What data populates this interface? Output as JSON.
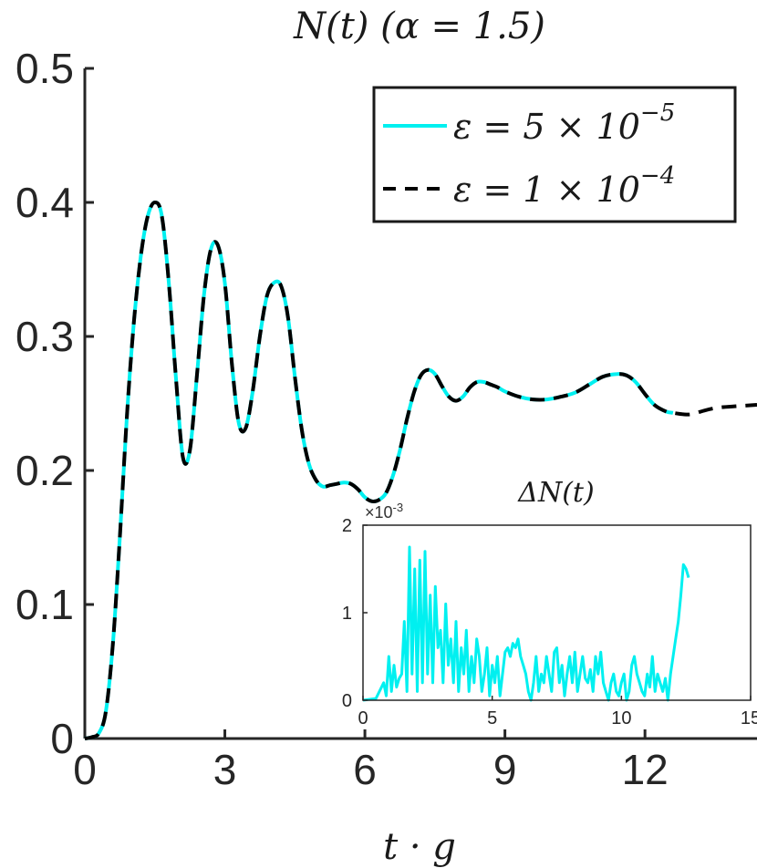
{
  "chart_data": [
    {
      "type": "line",
      "title": "N(t) (α = 1.5)",
      "xlabel": "t · g",
      "ylabel": "",
      "xlim": [
        0,
        14.4
      ],
      "ylim": [
        0,
        0.5
      ],
      "xticks": [
        0,
        3,
        6,
        9,
        12
      ],
      "xtick_labels": [
        "0",
        "3",
        "6",
        "9",
        "12"
      ],
      "yticks": [
        0,
        0.1,
        0.2,
        0.3,
        0.4,
        0.5
      ],
      "ytick_labels": [
        "0",
        "0.1",
        "0.2",
        "0.3",
        "0.4",
        "0.5"
      ],
      "grid": false,
      "legend_position": "top-right",
      "series": [
        {
          "name": "ε = 5 × 10⁻⁵",
          "legend_main": "ε = 5 × 10",
          "legend_exp": "−5",
          "color": "#00f0f0",
          "dash": "solid",
          "x": [
            0,
            0.15,
            0.3,
            0.45,
            0.6,
            0.75,
            0.9,
            1.05,
            1.2,
            1.35,
            1.5,
            1.65,
            1.8,
            1.95,
            2.1,
            2.25,
            2.4,
            2.55,
            2.7,
            2.85,
            3.0,
            3.15,
            3.3,
            3.45,
            3.6,
            3.75,
            3.9,
            4.05,
            4.2,
            4.35,
            4.5,
            4.65,
            4.8,
            4.95,
            5.1,
            5.25,
            5.4,
            5.55,
            5.7,
            5.85,
            6.0,
            6.15,
            6.3,
            6.45,
            6.6,
            6.75,
            6.9,
            7.05,
            7.2,
            7.35,
            7.5,
            7.65,
            7.8,
            7.95,
            8.1,
            8.25,
            8.4,
            8.55,
            8.7,
            8.85,
            9.0,
            9.3,
            9.6,
            9.9,
            10.2,
            10.5,
            10.8,
            11.1,
            11.4,
            11.6,
            11.8,
            12.0,
            12.2,
            12.45,
            12.6
          ],
          "y": [
            0,
            0.001,
            0.004,
            0.02,
            0.07,
            0.15,
            0.24,
            0.31,
            0.36,
            0.39,
            0.4,
            0.39,
            0.34,
            0.27,
            0.21,
            0.215,
            0.27,
            0.33,
            0.365,
            0.368,
            0.34,
            0.28,
            0.235,
            0.232,
            0.26,
            0.3,
            0.33,
            0.34,
            0.338,
            0.315,
            0.27,
            0.23,
            0.205,
            0.193,
            0.188,
            0.189,
            0.19,
            0.191,
            0.19,
            0.186,
            0.18,
            0.177,
            0.178,
            0.183,
            0.196,
            0.215,
            0.238,
            0.258,
            0.271,
            0.275,
            0.272,
            0.263,
            0.255,
            0.252,
            0.255,
            0.262,
            0.266,
            0.266,
            0.264,
            0.262,
            0.259,
            0.255,
            0.253,
            0.253,
            0.255,
            0.258,
            0.264,
            0.27,
            0.272,
            0.271,
            0.266,
            0.257,
            0.249,
            0.244,
            0.243
          ]
        },
        {
          "name": "ε = 1 × 10⁻⁴",
          "legend_main": "ε = 1 × 10",
          "legend_exp": "−4",
          "color": "#000000",
          "dash": "dashed",
          "x": [
            0,
            0.15,
            0.3,
            0.45,
            0.6,
            0.75,
            0.9,
            1.05,
            1.2,
            1.35,
            1.5,
            1.65,
            1.8,
            1.95,
            2.1,
            2.25,
            2.4,
            2.55,
            2.7,
            2.85,
            3.0,
            3.15,
            3.3,
            3.45,
            3.6,
            3.75,
            3.9,
            4.05,
            4.2,
            4.35,
            4.5,
            4.65,
            4.8,
            4.95,
            5.1,
            5.25,
            5.4,
            5.55,
            5.7,
            5.85,
            6.0,
            6.15,
            6.3,
            6.45,
            6.6,
            6.75,
            6.9,
            7.05,
            7.2,
            7.35,
            7.5,
            7.65,
            7.8,
            7.95,
            8.1,
            8.25,
            8.4,
            8.55,
            8.7,
            8.85,
            9.0,
            9.3,
            9.6,
            9.9,
            10.2,
            10.5,
            10.8,
            11.1,
            11.4,
            11.6,
            11.8,
            12.0,
            12.2,
            12.45,
            12.6,
            12.8,
            13.0,
            13.3,
            13.6,
            14.0,
            14.4
          ],
          "y": [
            0,
            0.001,
            0.004,
            0.02,
            0.07,
            0.15,
            0.24,
            0.31,
            0.36,
            0.39,
            0.4,
            0.39,
            0.34,
            0.27,
            0.21,
            0.215,
            0.27,
            0.33,
            0.365,
            0.368,
            0.34,
            0.28,
            0.235,
            0.232,
            0.26,
            0.3,
            0.33,
            0.34,
            0.338,
            0.315,
            0.27,
            0.23,
            0.205,
            0.193,
            0.188,
            0.189,
            0.19,
            0.191,
            0.19,
            0.186,
            0.18,
            0.177,
            0.178,
            0.183,
            0.196,
            0.215,
            0.238,
            0.258,
            0.271,
            0.275,
            0.272,
            0.263,
            0.255,
            0.252,
            0.255,
            0.262,
            0.266,
            0.266,
            0.264,
            0.262,
            0.259,
            0.255,
            0.253,
            0.253,
            0.255,
            0.258,
            0.264,
            0.27,
            0.272,
            0.271,
            0.266,
            0.257,
            0.249,
            0.244,
            0.243,
            0.242,
            0.242,
            0.245,
            0.247,
            0.248,
            0.249
          ]
        }
      ]
    },
    {
      "type": "line",
      "title": "ΔN(t)",
      "xlabel": "",
      "ylabel": "",
      "xlim": [
        0,
        15
      ],
      "ylim": [
        0,
        2
      ],
      "xticks": [
        0,
        5,
        10,
        15
      ],
      "xtick_labels": [
        "0",
        "5",
        "10",
        "15"
      ],
      "yticks": [
        0,
        1,
        2
      ],
      "ytick_labels": [
        "0",
        "1",
        "2"
      ],
      "y_exponent_label": "×10",
      "y_exponent_power": "-3",
      "grid": false,
      "series": [
        {
          "color": "#00f0f0",
          "x": [
            0,
            0.5,
            0.8,
            0.9,
            1.0,
            1.1,
            1.2,
            1.3,
            1.4,
            1.5,
            1.6,
            1.7,
            1.8,
            1.9,
            2.0,
            2.1,
            2.2,
            2.3,
            2.4,
            2.5,
            2.6,
            2.7,
            2.8,
            2.9,
            3.0,
            3.1,
            3.2,
            3.3,
            3.4,
            3.5,
            3.6,
            3.7,
            3.8,
            3.9,
            4.0,
            4.1,
            4.2,
            4.3,
            4.4,
            4.5,
            4.6,
            4.7,
            4.8,
            4.9,
            5.0,
            5.1,
            5.2,
            5.3,
            5.4,
            5.5,
            5.6,
            5.7,
            5.8,
            5.9,
            6.0,
            6.1,
            6.2,
            6.3,
            6.4,
            6.5,
            6.6,
            6.7,
            6.8,
            6.9,
            7.0,
            7.1,
            7.2,
            7.3,
            7.4,
            7.5,
            7.6,
            7.7,
            7.8,
            7.9,
            8.0,
            8.1,
            8.2,
            8.3,
            8.4,
            8.5,
            8.6,
            8.7,
            8.8,
            8.9,
            9.0,
            9.1,
            9.2,
            9.3,
            9.4,
            9.5,
            9.6,
            9.7,
            9.8,
            9.9,
            10.0,
            10.1,
            10.2,
            10.3,
            10.4,
            10.5,
            10.6,
            10.7,
            10.8,
            10.9,
            11.0,
            11.1,
            11.2,
            11.3,
            11.4,
            11.5,
            11.6,
            11.7,
            11.8,
            11.9,
            12.0,
            12.1,
            12.2,
            12.3,
            12.4,
            12.5,
            12.6
          ],
          "y": [
            0,
            0.02,
            0.2,
            0.05,
            0.5,
            0.1,
            0.4,
            0.15,
            0.25,
            0.3,
            0.9,
            0.1,
            1.75,
            0.3,
            1.5,
            0.1,
            1.6,
            0.2,
            1.7,
            0.3,
            1.2,
            0.2,
            1.3,
            0.6,
            0.8,
            0.2,
            1.1,
            0.4,
            0.7,
            0.2,
            0.9,
            0.1,
            0.6,
            0.3,
            0.8,
            0.1,
            0.5,
            0.2,
            0.7,
            0.5,
            0.1,
            0.3,
            0.6,
            0.05,
            0.4,
            0.2,
            0.5,
            0.05,
            0.3,
            0.55,
            0.6,
            0.5,
            0.65,
            0.6,
            0.7,
            0.5,
            0.4,
            0.3,
            0.1,
            0.0,
            0.2,
            0.5,
            0.1,
            0.3,
            0.2,
            0.5,
            0.3,
            0.1,
            0.55,
            0.6,
            0.2,
            0.4,
            0.05,
            0.3,
            0.5,
            0.2,
            0.55,
            0.1,
            0.3,
            0.5,
            0.25,
            0.2,
            0.35,
            0.1,
            0.5,
            0.3,
            0.55,
            0.2,
            0.1,
            0.0,
            0.2,
            0.3,
            0.1,
            0.05,
            0.2,
            0.3,
            0.0,
            0.1,
            0.4,
            0.5,
            0.3,
            0.2,
            0.1,
            0.05,
            0.3,
            0.15,
            0.5,
            0.1,
            0.3,
            0.2,
            0.1,
            0.25,
            0.0,
            0.3,
            0.5,
            0.7,
            0.9,
            1.2,
            1.55,
            1.5,
            1.4
          ]
        }
      ]
    }
  ]
}
